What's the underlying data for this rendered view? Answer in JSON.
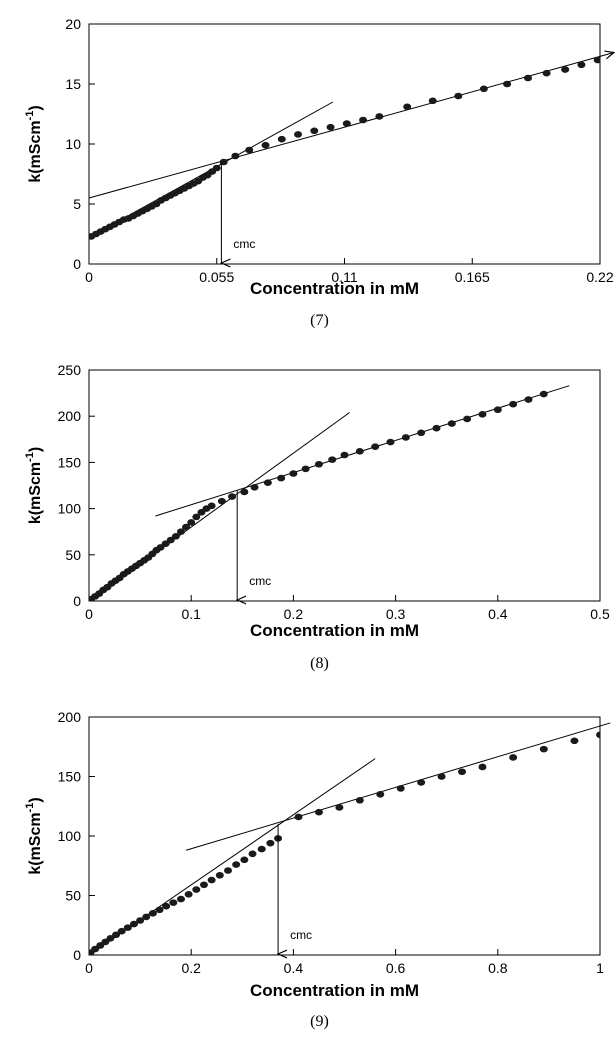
{
  "colors": {
    "marker": "#1a1a1a",
    "line": "#000000"
  },
  "chart_data": [
    {
      "type": "scatter",
      "caption": "(7)",
      "xlabel": "Concentration in mM",
      "ylabel_main": "k(mScm",
      "ylabel_sup": "-1",
      "ylabel_close": ")",
      "xlim": [
        0,
        0.22
      ],
      "ylim": [
        0,
        20
      ],
      "xticks": [
        0,
        0.055,
        0.11,
        0.165,
        0.22
      ],
      "xtick_labels": [
        "0",
        "0.055",
        "0.11",
        "0.165",
        "0.22"
      ],
      "yticks": [
        0,
        5,
        10,
        15,
        20
      ],
      "ytick_labels": [
        "0",
        "5",
        "10",
        "15",
        "20"
      ],
      "annotation": {
        "text": "cmc",
        "x": 0.057,
        "y_from": 8.5,
        "y_to": 0
      },
      "fit_lines": [
        {
          "x": [
            0,
            0.105
          ],
          "y": [
            2.2,
            13.5
          ]
        },
        {
          "x": [
            0,
            0.22
          ],
          "y": [
            5.5,
            17.3
          ]
        }
      ],
      "points": {
        "x": [
          0.001,
          0.003,
          0.005,
          0.007,
          0.009,
          0.011,
          0.013,
          0.015,
          0.017,
          0.019,
          0.021,
          0.023,
          0.025,
          0.027,
          0.029,
          0.031,
          0.033,
          0.035,
          0.037,
          0.039,
          0.041,
          0.043,
          0.045,
          0.047,
          0.049,
          0.051,
          0.053,
          0.055,
          0.058,
          0.063,
          0.069,
          0.076,
          0.083,
          0.09,
          0.097,
          0.104,
          0.111,
          0.118,
          0.125,
          0.137,
          0.148,
          0.159,
          0.17,
          0.18,
          0.189,
          0.197,
          0.205,
          0.212,
          0.219
        ],
        "y": [
          2.3,
          2.5,
          2.7,
          2.9,
          3.1,
          3.3,
          3.5,
          3.7,
          3.8,
          4.0,
          4.2,
          4.4,
          4.6,
          4.8,
          5.0,
          5.3,
          5.5,
          5.7,
          5.9,
          6.1,
          6.3,
          6.5,
          6.7,
          6.9,
          7.2,
          7.4,
          7.7,
          8.0,
          8.5,
          9.0,
          9.5,
          9.9,
          10.4,
          10.8,
          11.1,
          11.4,
          11.7,
          12.0,
          12.3,
          13.1,
          13.6,
          14.0,
          14.6,
          15.0,
          15.5,
          15.9,
          16.2,
          16.6,
          17.0
        ]
      }
    },
    {
      "type": "scatter",
      "caption": "(8)",
      "xlabel": "Concentration in mM",
      "ylabel_main": "k(mScm",
      "ylabel_sup": "-1",
      "ylabel_close": ")",
      "xlim": [
        0,
        0.5
      ],
      "ylim": [
        0,
        250
      ],
      "xticks": [
        0,
        0.1,
        0.2,
        0.3,
        0.4,
        0.5
      ],
      "xtick_labels": [
        "0",
        "0.1",
        "0.2",
        "0.3",
        "0.4",
        "0.5"
      ],
      "yticks": [
        0,
        50,
        100,
        150,
        200,
        250
      ],
      "ytick_labels": [
        "0",
        "50",
        "100",
        "150",
        "200",
        "250"
      ],
      "annotation": {
        "text": "cmc",
        "x": 0.145,
        "y_from": 120,
        "y_to": 0
      },
      "fit_lines": [
        {
          "x": [
            0,
            0.255
          ],
          "y": [
            0,
            204
          ]
        },
        {
          "x": [
            0.065,
            0.47
          ],
          "y": [
            92,
            233
          ]
        }
      ],
      "points": {
        "x": [
          0.002,
          0.006,
          0.01,
          0.014,
          0.018,
          0.022,
          0.026,
          0.03,
          0.034,
          0.038,
          0.042,
          0.046,
          0.05,
          0.054,
          0.058,
          0.062,
          0.066,
          0.07,
          0.075,
          0.08,
          0.085,
          0.09,
          0.095,
          0.1,
          0.105,
          0.11,
          0.115,
          0.12,
          0.13,
          0.14,
          0.152,
          0.162,
          0.175,
          0.188,
          0.2,
          0.212,
          0.225,
          0.238,
          0.25,
          0.265,
          0.28,
          0.295,
          0.31,
          0.325,
          0.34,
          0.355,
          0.37,
          0.385,
          0.4,
          0.415,
          0.43,
          0.445
        ],
        "y": [
          2,
          5,
          8,
          12,
          15,
          19,
          22,
          25,
          29,
          32,
          35,
          38,
          41,
          44,
          47,
          51,
          55,
          58,
          62,
          66,
          70,
          75,
          80,
          85,
          91,
          96,
          100,
          103,
          108,
          113,
          118,
          123,
          128,
          133,
          138,
          143,
          148,
          153,
          158,
          162,
          167,
          172,
          177,
          182,
          187,
          192,
          197,
          202,
          207,
          213,
          218,
          224
        ]
      }
    },
    {
      "type": "scatter",
      "caption": "(9)",
      "xlabel": "Concentration in mM",
      "ylabel_main": "k(mScm",
      "ylabel_sup": "-1",
      "ylabel_close": ")",
      "xlim": [
        0,
        1
      ],
      "ylim": [
        0,
        200
      ],
      "xticks": [
        0,
        0.2,
        0.4,
        0.6,
        0.8,
        1
      ],
      "xtick_labels": [
        "0",
        "0.2",
        "0.4",
        "0.6",
        "0.8",
        "1"
      ],
      "yticks": [
        0,
        50,
        100,
        150,
        200
      ],
      "ytick_labels": [
        "0",
        "50",
        "100",
        "150",
        "200"
      ],
      "annotation": {
        "text": "cmc",
        "x": 0.37,
        "y_from": 110,
        "y_to": 0
      },
      "fit_lines": [
        {
          "x": [
            0,
            0.56
          ],
          "y": [
            0,
            165
          ]
        },
        {
          "x": [
            0.19,
            1.02
          ],
          "y": [
            88,
            195
          ]
        }
      ],
      "points": {
        "x": [
          0.003,
          0.012,
          0.022,
          0.032,
          0.042,
          0.053,
          0.064,
          0.076,
          0.088,
          0.1,
          0.112,
          0.125,
          0.138,
          0.151,
          0.165,
          0.18,
          0.195,
          0.21,
          0.225,
          0.24,
          0.256,
          0.272,
          0.288,
          0.304,
          0.32,
          0.338,
          0.355,
          0.37,
          0.41,
          0.45,
          0.49,
          0.53,
          0.57,
          0.61,
          0.65,
          0.69,
          0.73,
          0.77,
          0.83,
          0.89,
          0.95,
          1.0
        ],
        "y": [
          2,
          5,
          8,
          11,
          14,
          17,
          20,
          23,
          26,
          29,
          32,
          35,
          38,
          41,
          44,
          47,
          51,
          55,
          59,
          63,
          67,
          71,
          76,
          80,
          85,
          89,
          94,
          98,
          116,
          120,
          124,
          130,
          135,
          140,
          145,
          150,
          154,
          158,
          166,
          173,
          180,
          185
        ]
      }
    }
  ]
}
